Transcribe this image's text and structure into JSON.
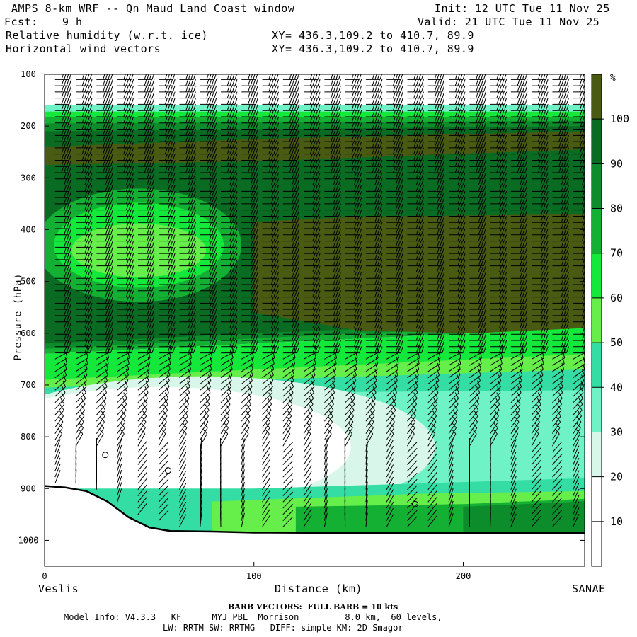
{
  "header": {
    "title": "AMPS 8-km WRF -- Qn Maud Land Coast window",
    "init": "Init: 12 UTC Tue 11 Nov 25",
    "fcst_label": "Fcst:",
    "fcst_value": "9 h",
    "valid": "Valid: 21 UTC Tue 11 Nov 25",
    "field1": "Relative humidity (w.r.t. ice)",
    "field2": "Horizontal wind vectors",
    "xy1": "XY= 436.3,109.2 to 410.7, 89.9",
    "xy2": "XY= 436.3,109.2 to 410.7, 89.9"
  },
  "footer": {
    "left_end": "Veslis",
    "right_end": "SANAE",
    "xlabel": "Distance (km)",
    "barb_note": "BARB VECTORS:  FULL BARB = 10 kts",
    "model_line1": "Model Info: V4.3.3   KF      MYJ PBL  Morrison         8.0 km,  60 levels,",
    "model_line2": "LW: RRTM SW: RRTMG   DIFF: simple KM: 2D Smagor"
  },
  "colorbar": {
    "unit": "%",
    "levels": [
      10,
      20,
      30,
      40,
      50,
      60,
      70,
      80,
      90,
      100
    ],
    "colors": [
      "#ffffff",
      "#ffffff",
      "#ffffff",
      "#d8f6ea",
      "#6ef2c6",
      "#33dda3",
      "#66ee4a",
      "#14e83a",
      "#14b033",
      "#0c8c2a",
      "#0a6b22",
      "#495a12"
    ]
  },
  "chart_data": {
    "type": "heatmap",
    "title": "Relative humidity (w.r.t. ice)",
    "xlabel": "Distance (km)",
    "ylabel": "Pressure (hPa)",
    "xlim": [
      0,
      258
    ],
    "ylim": [
      1050,
      100
    ],
    "x_ticks": [
      0,
      100,
      200
    ],
    "y_ticks": [
      100,
      200,
      300,
      400,
      500,
      600,
      700,
      800,
      900,
      1000
    ],
    "colorbar_ticks": [
      10,
      20,
      30,
      40,
      50,
      60,
      70,
      80,
      90,
      100
    ],
    "colorbar_unit": "%",
    "terrain_surface_hPa": [
      [
        0,
        895
      ],
      [
        10,
        898
      ],
      [
        20,
        905
      ],
      [
        30,
        925
      ],
      [
        40,
        955
      ],
      [
        50,
        975
      ],
      [
        60,
        982
      ],
      [
        80,
        983
      ],
      [
        100,
        985
      ],
      [
        150,
        986
      ],
      [
        200,
        986
      ],
      [
        258,
        986
      ]
    ],
    "rh_bands_hPa": [
      {
        "name": "RH > 100 upper layer",
        "level": 100,
        "top": [
          [
            0,
            240
          ],
          [
            100,
            225
          ],
          [
            258,
            210
          ]
        ],
        "bottom": [
          [
            0,
            275
          ],
          [
            100,
            268
          ],
          [
            258,
            245
          ]
        ]
      },
      {
        "name": "RH > 100 mid layer",
        "level": 100,
        "top": [
          [
            100,
            385
          ],
          [
            150,
            375
          ],
          [
            258,
            370
          ]
        ],
        "bottom": [
          [
            100,
            560
          ],
          [
            150,
            595
          ],
          [
            258,
            605
          ]
        ]
      },
      {
        "name": "RH 70-80 dry pocket",
        "level": 70,
        "center": [
          45,
          430
        ]
      },
      {
        "name": "RH < 30 low-level dry region",
        "level": 30,
        "center": [
          45,
          800
        ]
      }
    ],
    "wind_barb_note": "FULL BARB = 10 kts"
  }
}
